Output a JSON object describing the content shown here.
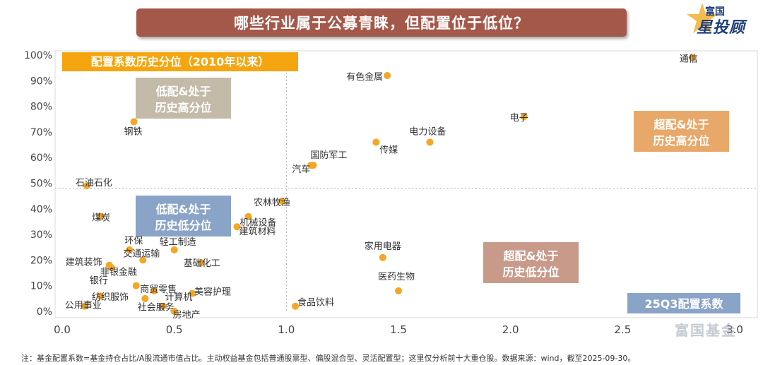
{
  "title": "哪些行业属于公募青睐，但配置位于低位？",
  "brand": {
    "name": "富国",
    "tagline": "星投顾"
  },
  "watermark": "富国基金",
  "footnote": "注：基金配置系数=基金持仓占比/A股流通市值占比。主动权益基金包括普通股票型、偏股混合型、灵活配置型；这里仅分析前十大重仓股。数据来源：wind，截至2025-09-30。",
  "colors": {
    "point": "#f5a623",
    "title_bg": "#a4584a",
    "ylabel_bg": "#f5a50f",
    "xlabel_bg": "#8aa4c8",
    "q_top_left": "#c4baa8",
    "q_top_right": "#e8a86a",
    "q_bottom_left": "#8aa4c8",
    "q_bottom_right": "#c89a8a"
  },
  "chart_data": {
    "type": "scatter",
    "title": "哪些行业属于公募青睐，但配置位于低位？",
    "xlabel": "25Q3配置系数",
    "ylabel": "配置系数历史分位（2010年以来）",
    "xlim": [
      0.0,
      3.0
    ],
    "ylim": [
      0,
      100
    ],
    "x_ticks": [
      "0.0",
      "0.5",
      "1.0",
      "1.5",
      "2.0",
      "2.5",
      "3.0"
    ],
    "y_ticks": [
      "0%",
      "10%",
      "20%",
      "30%",
      "40%",
      "50%",
      "60%",
      "70%",
      "80%",
      "90%",
      "100%"
    ],
    "reference_lines": {
      "x": 1.0,
      "y": 48
    },
    "quadrants": {
      "top_left": "低配&处于历史高分位",
      "top_right": "超配&处于历史高分位",
      "bottom_left": "低配&处于历史低分位",
      "bottom_right": "超配&处于历史低分位"
    },
    "points": [
      {
        "label": "通信",
        "x": 2.81,
        "y": 99
      },
      {
        "label": "有色金属",
        "x": 1.45,
        "y": 92
      },
      {
        "label": "电子",
        "x": 2.06,
        "y": 76
      },
      {
        "label": "钢铁",
        "x": 0.32,
        "y": 74
      },
      {
        "label": "电力设备",
        "x": 1.64,
        "y": 66
      },
      {
        "label": "传媒",
        "x": 1.4,
        "y": 66
      },
      {
        "label": "国防军工",
        "x": 1.12,
        "y": 57
      },
      {
        "label": "汽车",
        "x": 1.11,
        "y": 57
      },
      {
        "label": "石油石化",
        "x": 0.11,
        "y": 49
      },
      {
        "label": "农林牧渔",
        "x": 0.98,
        "y": 43
      },
      {
        "label": "煤炭",
        "x": 0.17,
        "y": 37
      },
      {
        "label": "机械设备",
        "x": 0.83,
        "y": 37
      },
      {
        "label": "建筑材料",
        "x": 0.78,
        "y": 33
      },
      {
        "label": "环保",
        "x": 0.3,
        "y": 24
      },
      {
        "label": "轻工制造",
        "x": 0.5,
        "y": 24
      },
      {
        "label": "交通运输",
        "x": 0.36,
        "y": 20
      },
      {
        "label": "家用电器",
        "x": 1.43,
        "y": 21
      },
      {
        "label": "基础化工",
        "x": 0.62,
        "y": 19
      },
      {
        "label": "建筑装饰",
        "x": 0.21,
        "y": 18
      },
      {
        "label": "非银金融",
        "x": 0.22,
        "y": 17
      },
      {
        "label": "银行",
        "x": 0.33,
        "y": 10
      },
      {
        "label": "医药生物",
        "x": 1.5,
        "y": 8
      },
      {
        "label": "商贸零售",
        "x": 0.41,
        "y": 8
      },
      {
        "label": "美容护理",
        "x": 0.58,
        "y": 7
      },
      {
        "label": "纺织服饰",
        "x": 0.17,
        "y": 6
      },
      {
        "label": "计算机",
        "x": 0.37,
        "y": 5
      },
      {
        "label": "公用事业",
        "x": 0.1,
        "y": 2
      },
      {
        "label": "社会服务",
        "x": 0.45,
        "y": 2
      },
      {
        "label": "食品饮料",
        "x": 1.04,
        "y": 2
      },
      {
        "label": "房地产",
        "x": 0.5,
        "y": 0
      }
    ]
  }
}
